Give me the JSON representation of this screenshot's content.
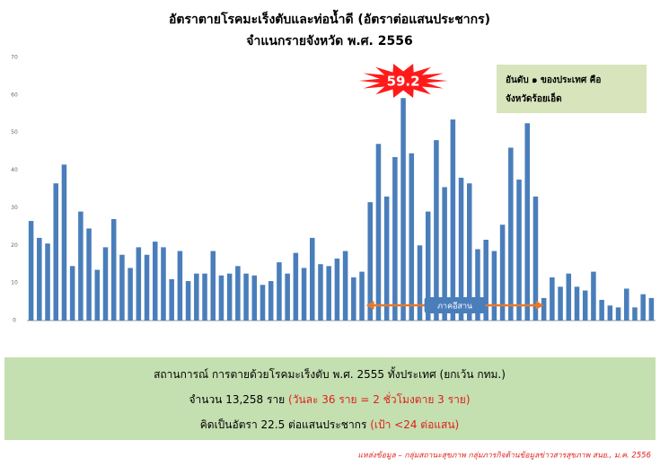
{
  "chart_data": {
    "type": "bar",
    "title": "อัตราตายโรคมะเร็งตับและท่อน้ำดี (อัตราต่อแสนประชากร)",
    "subtitle": "จำแนกรายจังหวัด พ.ศ. 2556",
    "categories": [
      null,
      null,
      null,
      null,
      null,
      null,
      null,
      null,
      null,
      null,
      null,
      null,
      null,
      null,
      null,
      null,
      null,
      null,
      null,
      null,
      null,
      null,
      null,
      null,
      null,
      null,
      null,
      null,
      null,
      null,
      null,
      null,
      null,
      null,
      null,
      null,
      null,
      null,
      null,
      null,
      null,
      null,
      null,
      null,
      null,
      null,
      null,
      null,
      null,
      null,
      null,
      null,
      null,
      null,
      null,
      null,
      null,
      null,
      null,
      null,
      null,
      null,
      null,
      null,
      null,
      null,
      null,
      null,
      null,
      null,
      null,
      null,
      null,
      null,
      null,
      null
    ],
    "values": [
      26.5,
      22,
      20.5,
      36.5,
      41.5,
      14.5,
      29,
      24.5,
      13.5,
      19.5,
      27,
      17.5,
      14,
      19.5,
      17.5,
      21,
      19.5,
      11,
      18.5,
      10.5,
      12.5,
      12.5,
      18.5,
      12,
      12.5,
      14.5,
      12.5,
      12,
      9.5,
      10.5,
      15.5,
      12.5,
      18,
      14,
      22,
      15,
      14.5,
      16.5,
      18.5,
      11.5,
      13,
      31.5,
      47,
      33,
      43.5,
      59.2,
      44.5,
      20,
      29,
      48,
      35.5,
      53.5,
      38,
      36.5,
      19,
      21.5,
      18.5,
      25.5,
      46,
      37.5,
      52.5,
      33,
      6,
      11.5,
      9,
      12.5,
      9,
      8,
      13,
      5.5,
      4,
      3.5,
      8.5,
      3.5,
      7,
      6
    ],
    "color": "#4a7ebb",
    "highlight_index": 45,
    "ylim": [
      0,
      70
    ],
    "yticks": [
      0,
      10,
      20,
      30,
      40,
      50,
      60,
      70
    ],
    "grid": false,
    "annotations": [
      "อันดับ ๑ ของประเทศ คือ",
      "จังหวัดร้อยเอ็ด",
      "ภาคอีสาน"
    ]
  },
  "summary": [
    [
      {
        "text": "สถานการณ์ การตายด้วยโรคมะเร็งตับ พ.ศ. 2555 ทั้งประเทศ (ยกเว้น กทม.)",
        "color": "#000000"
      }
    ],
    [
      {
        "text": "จำนวน 13,258 ราย ",
        "color": "#000000"
      },
      {
        "text": "(วันละ 36 ราย = 2 ชั่วโมงตาย 3 ราย)",
        "color": "#e0201b"
      }
    ],
    [
      {
        "text": "คิดเป็นอัตรา 22.5 ต่อแสนประชากร ",
        "color": "#000000"
      },
      {
        "text": "(เป้า <24 ต่อแสน)",
        "color": "#e0201b"
      }
    ]
  ],
  "source": "แหล่งข้อมูล – กลุ่มสถานะสุขภาพ กลุ่มภารกิจด้านข้อมูลข่าวสารสุขภาพ สนย., ม.ค. 2556"
}
